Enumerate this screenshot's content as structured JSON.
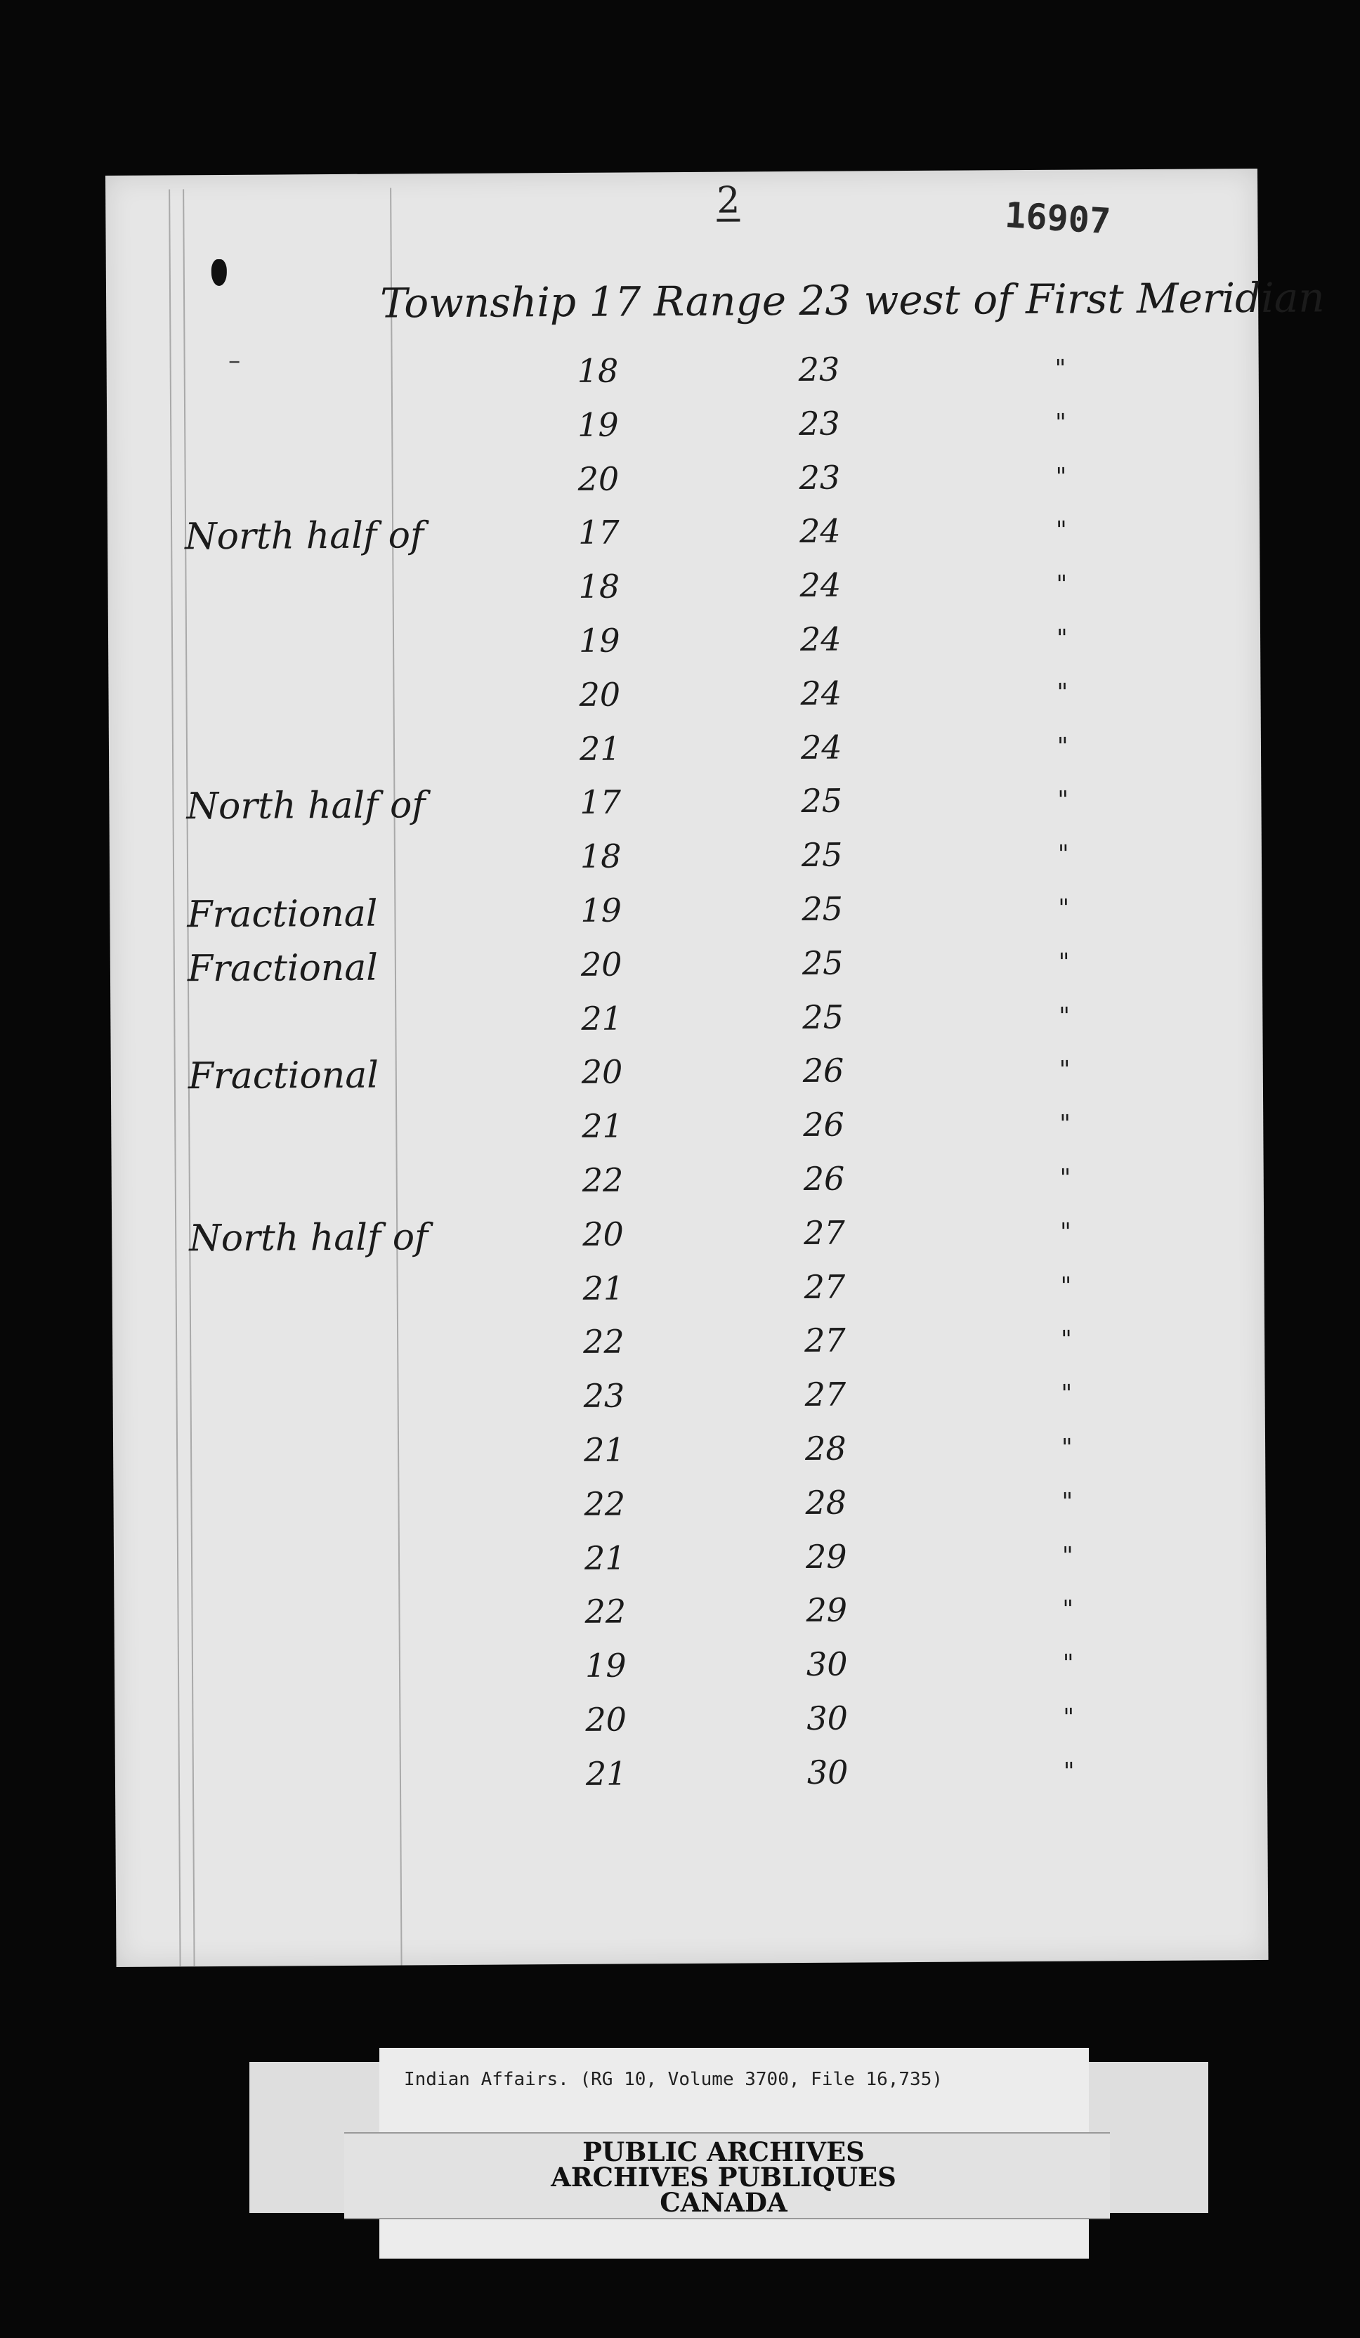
{
  "document": {
    "page_number": "2",
    "file_number": "16907",
    "header": "Township 17 Range 23 west of First Meridian",
    "rows": [
      {
        "label": "",
        "township": "18",
        "range": "23",
        "ditto": "\""
      },
      {
        "label": "",
        "township": "19",
        "range": "23",
        "ditto": "\""
      },
      {
        "label": "",
        "township": "20",
        "range": "23",
        "ditto": "\""
      },
      {
        "label": "North half of",
        "township": "17",
        "range": "24",
        "ditto": "\""
      },
      {
        "label": "",
        "township": "18",
        "range": "24",
        "ditto": "\""
      },
      {
        "label": "",
        "township": "19",
        "range": "24",
        "ditto": "\""
      },
      {
        "label": "",
        "township": "20",
        "range": "24",
        "ditto": "\""
      },
      {
        "label": "",
        "township": "21",
        "range": "24",
        "ditto": "\""
      },
      {
        "label": "North half of",
        "township": "17",
        "range": "25",
        "ditto": "\""
      },
      {
        "label": "",
        "township": "18",
        "range": "25",
        "ditto": "\""
      },
      {
        "label": "Fractional",
        "township": "19",
        "range": "25",
        "ditto": "\""
      },
      {
        "label": "Fractional",
        "township": "20",
        "range": "25",
        "ditto": "\""
      },
      {
        "label": "",
        "township": "21",
        "range": "25",
        "ditto": "\""
      },
      {
        "label": "Fractional",
        "township": "20",
        "range": "26",
        "ditto": "\""
      },
      {
        "label": "",
        "township": "21",
        "range": "26",
        "ditto": "\""
      },
      {
        "label": "",
        "township": "22",
        "range": "26",
        "ditto": "\""
      },
      {
        "label": "North half of",
        "township": "20",
        "range": "27",
        "ditto": "\""
      },
      {
        "label": "",
        "township": "21",
        "range": "27",
        "ditto": "\""
      },
      {
        "label": "",
        "township": "22",
        "range": "27",
        "ditto": "\""
      },
      {
        "label": "",
        "township": "23",
        "range": "27",
        "ditto": "\""
      },
      {
        "label": "",
        "township": "21",
        "range": "28",
        "ditto": "\""
      },
      {
        "label": "",
        "township": "22",
        "range": "28",
        "ditto": "\""
      },
      {
        "label": "",
        "township": "21",
        "range": "29",
        "ditto": "\""
      },
      {
        "label": "",
        "township": "22",
        "range": "29",
        "ditto": "\""
      },
      {
        "label": "",
        "township": "19",
        "range": "30",
        "ditto": "\""
      },
      {
        "label": "",
        "township": "20",
        "range": "30",
        "ditto": "\""
      },
      {
        "label": "",
        "township": "21",
        "range": "30",
        "ditto": "\""
      }
    ]
  },
  "archive_label": {
    "reference": "Indian Affairs. (RG 10, Volume 3700, File 16,735)",
    "stamp_lines": [
      "PUBLIC ARCHIVES",
      "ARCHIVES PUBLIQUES",
      "CANADA"
    ]
  }
}
